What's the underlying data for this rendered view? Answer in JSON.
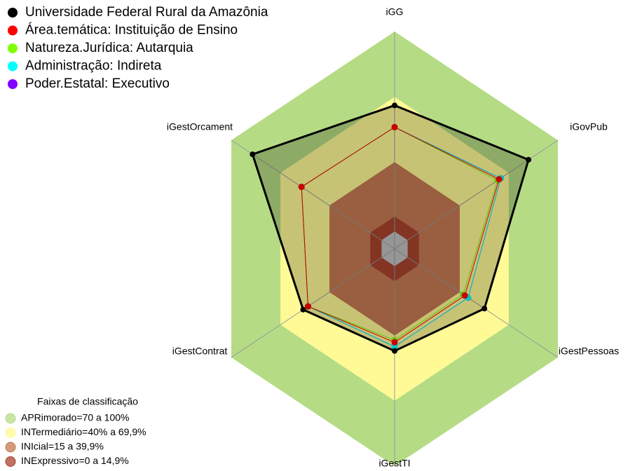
{
  "chart_data": {
    "type": "radar",
    "axes": [
      "iGG",
      "iGovPub",
      "iGestPessoas",
      "iGestTI",
      "iGestContrat",
      "iGestOrcament"
    ],
    "rlim": [
      0,
      100
    ],
    "series": [
      {
        "name": "Universidade Federal Rural da Amazônia",
        "color": "#000000",
        "values": [
          66,
          82,
          55,
          47,
          56,
          87
        ]
      },
      {
        "name": "Área.temática: Instituição de Ensino",
        "color": "#ff0000",
        "values": [
          56,
          64,
          43,
          43,
          53,
          57
        ]
      },
      {
        "name": "Natureza.Jurídica: Autarquia",
        "color": "#7fff00",
        "values": [
          56,
          63,
          42,
          42,
          53,
          57
        ]
      },
      {
        "name": "Administração: Indireta",
        "color": "#00ffff",
        "values": [
          56,
          65,
          45,
          45,
          53,
          57
        ]
      },
      {
        "name": "Poder.Estatal: Executivo",
        "color": "#8000ff",
        "values": [
          56,
          65,
          45,
          45,
          53,
          57
        ]
      }
    ],
    "bands_title": "Faixas de classificação",
    "bands": [
      {
        "label": "APRimorado=70 a 100%",
        "from": 70,
        "to": 100,
        "color": "#b5dc85"
      },
      {
        "label": "INTermediário=40% a 69,9%",
        "from": 40,
        "to": 69.9,
        "color": "#fffa96"
      },
      {
        "label": "INIcial=15 a 39,9%",
        "from": 15,
        "to": 39.9,
        "color": "#c47a52"
      },
      {
        "label": "INExpressivo=0 a 14,9%",
        "from": 0,
        "to": 14.9,
        "color": "#a8432e"
      }
    ]
  }
}
